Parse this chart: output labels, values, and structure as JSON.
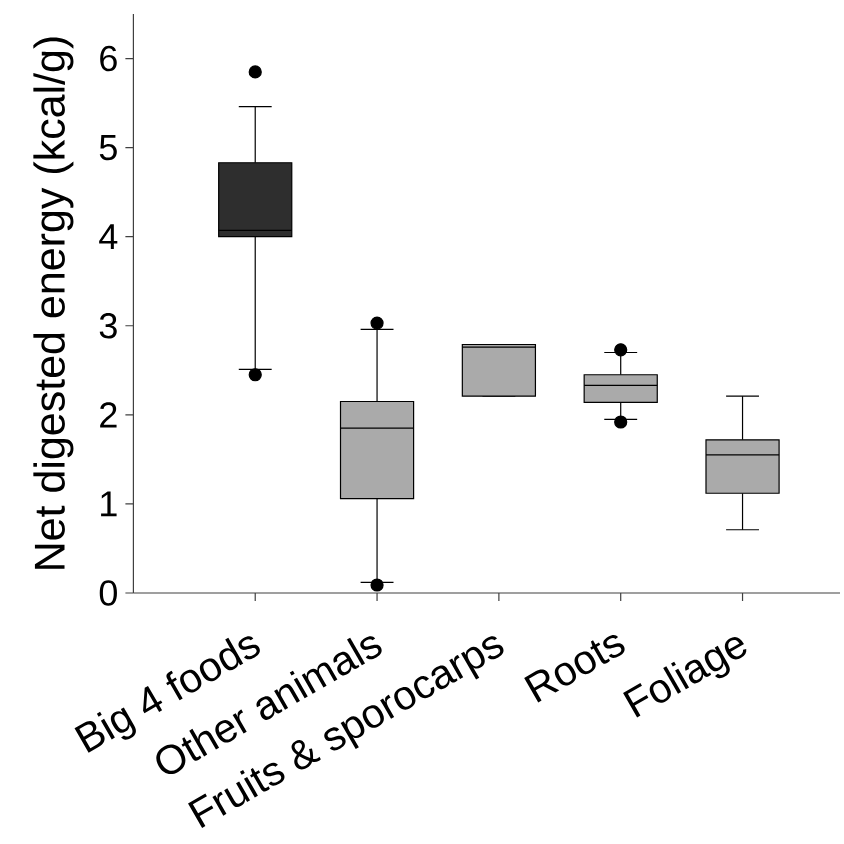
{
  "chart_data": {
    "type": "box",
    "ylabel": "Net digested energy (kcal/g)",
    "categories": [
      "Big 4 foods",
      "Other animals",
      "Fruits & sporocarps",
      "Roots",
      "Foliage"
    ],
    "boxes": [
      {
        "low": 2.51,
        "q1": 4.0,
        "median": 4.07,
        "q3": 4.83,
        "high": 5.46,
        "outliers": [
          5.85,
          2.45
        ]
      },
      {
        "low": 0.12,
        "q1": 1.06,
        "median": 1.85,
        "q3": 2.15,
        "high": 2.96,
        "outliers": [
          3.03,
          0.09
        ]
      },
      {
        "low": 2.21,
        "q1": 2.21,
        "median": 2.76,
        "q3": 2.79,
        "high": 2.79
      },
      {
        "low": 1.95,
        "q1": 2.14,
        "median": 2.33,
        "q3": 2.45,
        "high": 2.7,
        "outliers": [
          2.73,
          1.92
        ]
      },
      {
        "low": 0.71,
        "q1": 1.12,
        "median": 1.55,
        "q3": 1.72,
        "high": 2.21
      }
    ],
    "colors": [
      "#2e2e2e",
      "#aaaaaa",
      "#aaaaaa",
      "#aaaaaa",
      "#aaaaaa"
    ],
    "marker": "circle",
    "ylim": [
      0,
      6.5
    ],
    "yticks": [
      0,
      1,
      2,
      3,
      4,
      5,
      6
    ]
  }
}
